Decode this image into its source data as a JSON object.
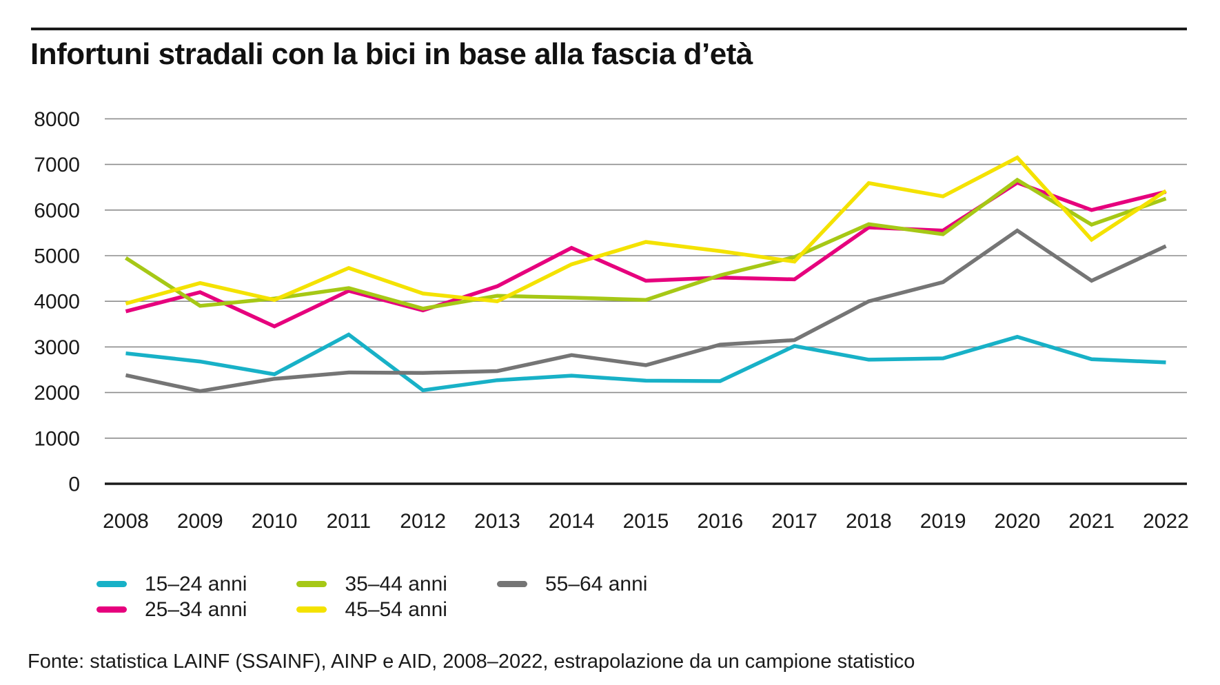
{
  "header": {
    "title": "Infortuni stradali con la bici in base alla fascia d’età"
  },
  "footer": {
    "source": "Fonte: statistica LAINF (SSAINF), AINP e AID, 2008–2022, estrapolazione da un campione statistico"
  },
  "colors": {
    "age_15_24": "#18b1c7",
    "age_25_34": "#e6007d",
    "age_35_44": "#a6c816",
    "age_45_54": "#f4e200",
    "age_55_64": "#757575",
    "gridline": "#8c8c8c",
    "zero_axis": "#1a1a1a",
    "text": "#1a1a1a"
  },
  "chart_data": {
    "type": "line",
    "title": "Infortuni stradali con la bici in base alla fascia d’età",
    "xlabel": "",
    "ylabel": "",
    "x": [
      2008,
      2009,
      2010,
      2011,
      2012,
      2013,
      2014,
      2015,
      2016,
      2017,
      2018,
      2019,
      2020,
      2021,
      2022
    ],
    "ylim": [
      0,
      8000
    ],
    "ytick_step": 1000,
    "yticks": [
      0,
      1000,
      2000,
      3000,
      4000,
      5000,
      6000,
      7000,
      8000
    ],
    "grid": true,
    "legend_position": "bottom-left",
    "series": [
      {
        "name": "15–24 anni",
        "color": "#18b1c7",
        "values": [
          2860,
          2680,
          2400,
          3270,
          2050,
          2270,
          2370,
          2260,
          2250,
          3020,
          2720,
          2750,
          3220,
          2730,
          2660
        ]
      },
      {
        "name": "25–34 anni",
        "color": "#e6007d",
        "values": [
          3780,
          4200,
          3450,
          4230,
          3800,
          4330,
          5170,
          4450,
          4520,
          4480,
          5620,
          5550,
          6600,
          6000,
          6400
        ]
      },
      {
        "name": "35–44 anni",
        "color": "#a6c816",
        "values": [
          4950,
          3900,
          4060,
          4290,
          3840,
          4120,
          4080,
          4030,
          4570,
          4970,
          5690,
          5470,
          6660,
          5680,
          6250
        ]
      },
      {
        "name": "45–54 anni",
        "color": "#f4e200",
        "values": [
          3950,
          4400,
          4030,
          4730,
          4170,
          4000,
          4810,
          5300,
          5100,
          4870,
          6590,
          6300,
          7150,
          5350,
          6420
        ]
      },
      {
        "name": "55–64 anni",
        "color": "#757575",
        "values": [
          2380,
          2030,
          2300,
          2440,
          2430,
          2470,
          2820,
          2600,
          3050,
          3150,
          4000,
          4420,
          5550,
          4450,
          5210
        ]
      }
    ]
  },
  "legend_order": [
    0,
    1,
    2,
    3,
    4
  ]
}
